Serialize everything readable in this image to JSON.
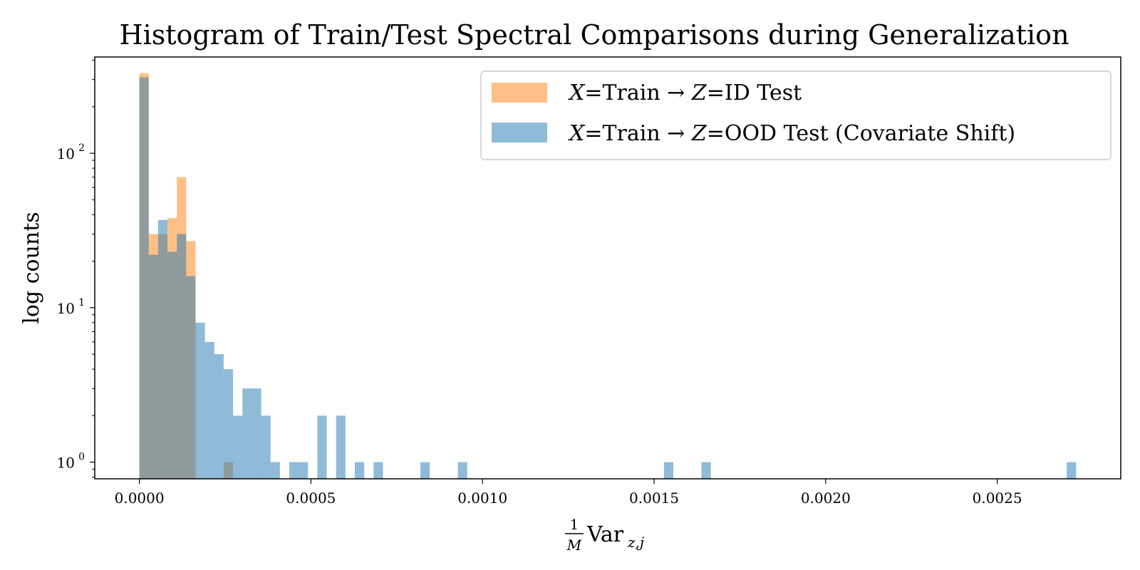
{
  "chart_data": {
    "type": "bar",
    "subtype": "histogram",
    "title": "Histogram of Train/Test Spectral Comparisons during Generalization",
    "xlabel": {
      "frac_num": "1",
      "frac_den": "M",
      "main": "Var",
      "subscript": "z,j"
    },
    "ylabel": "log counts",
    "yscale": "log",
    "xlim": [
      -0.00013,
      0.00286
    ],
    "ylim": [
      0.78,
      420
    ],
    "bin_width": 2.73e-05,
    "x_ticks": [
      0.0,
      0.0005,
      0.001,
      0.0015,
      0.002,
      0.0025
    ],
    "x_tick_labels": [
      "0.0000",
      "0.0005",
      "0.0010",
      "0.0015",
      "0.0020",
      "0.0025"
    ],
    "y_ticks": [
      1,
      10,
      100
    ],
    "y_tick_labels": [
      {
        "base": "10",
        "exp": "0"
      },
      {
        "base": "10",
        "exp": "1"
      },
      {
        "base": "10",
        "exp": "2"
      }
    ],
    "legend_position": "top-right",
    "series": [
      {
        "name": "X=Train → Z=ID Test",
        "legend": {
          "x": "X",
          "eq1": "=Train → ",
          "z": "Z",
          "eq2": "=ID Test"
        },
        "color": "#ff7f0e",
        "opacity": 0.5,
        "bins": [
          {
            "x0": 0.0,
            "count": 330
          },
          {
            "x0": 2.73e-05,
            "count": 30
          },
          {
            "x0": 5.46e-05,
            "count": 30
          },
          {
            "x0": 8.19e-05,
            "count": 38
          },
          {
            "x0": 0.0001092,
            "count": 70
          },
          {
            "x0": 0.0001365,
            "count": 27
          },
          {
            "x0": 0.0002457,
            "count": 1
          }
        ]
      },
      {
        "name": "X=Train → Z=OOD Test (Covariate Shift)",
        "legend": {
          "x": "X",
          "eq1": "=Train → ",
          "z": "Z",
          "eq2": "=OOD Test (Covariate Shift)"
        },
        "color": "#1f77b4",
        "opacity": 0.5,
        "bins": [
          {
            "x0": 0.0,
            "count": 310
          },
          {
            "x0": 2.73e-05,
            "count": 22
          },
          {
            "x0": 5.46e-05,
            "count": 37
          },
          {
            "x0": 8.19e-05,
            "count": 23
          },
          {
            "x0": 0.0001092,
            "count": 30
          },
          {
            "x0": 0.0001365,
            "count": 16
          },
          {
            "x0": 0.0001638,
            "count": 8
          },
          {
            "x0": 0.0001911,
            "count": 6
          },
          {
            "x0": 0.0002184,
            "count": 5
          },
          {
            "x0": 0.0002457,
            "count": 4
          },
          {
            "x0": 0.000273,
            "count": 2
          },
          {
            "x0": 0.0003003,
            "count": 3
          },
          {
            "x0": 0.0003276,
            "count": 3
          },
          {
            "x0": 0.0003549,
            "count": 2
          },
          {
            "x0": 0.0003822,
            "count": 1
          },
          {
            "x0": 0.0004368,
            "count": 1
          },
          {
            "x0": 0.0004641,
            "count": 1
          },
          {
            "x0": 0.0005187,
            "count": 2
          },
          {
            "x0": 0.0005733,
            "count": 2
          },
          {
            "x0": 0.0006279,
            "count": 1
          },
          {
            "x0": 0.0006825,
            "count": 1
          },
          {
            "x0": 0.000819,
            "count": 1
          },
          {
            "x0": 0.0009282,
            "count": 1
          },
          {
            "x0": 0.0015288,
            "count": 1
          },
          {
            "x0": 0.001638,
            "count": 1
          },
          {
            "x0": 0.0027027,
            "count": 1
          }
        ]
      }
    ]
  }
}
